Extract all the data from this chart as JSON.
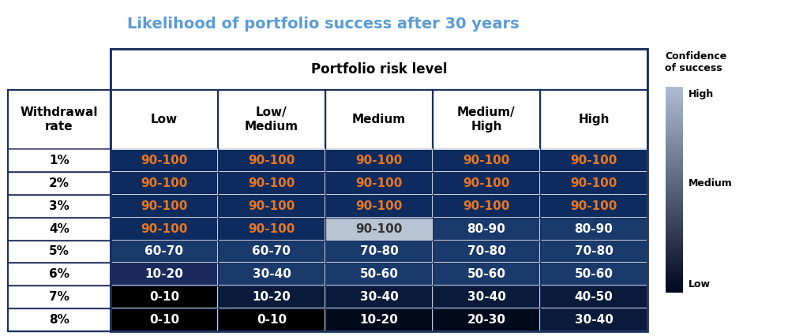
{
  "title": "Likelihood of portfolio success after 30 years",
  "title_color": "#5B9BD5",
  "header_row": [
    "Low",
    "Low/\nMedium",
    "Medium",
    "Medium/\nHigh",
    "High"
  ],
  "row_header": "Portfolio risk level",
  "col_header": "Withdrawal\nrate",
  "withdrawal_rates": [
    "1%",
    "2%",
    "3%",
    "4%",
    "5%",
    "6%",
    "7%",
    "8%"
  ],
  "table_data": [
    [
      "90-100",
      "90-100",
      "90-100",
      "90-100",
      "90-100"
    ],
    [
      "90-100",
      "90-100",
      "90-100",
      "90-100",
      "90-100"
    ],
    [
      "90-100",
      "90-100",
      "90-100",
      "90-100",
      "90-100"
    ],
    [
      "90-100",
      "90-100",
      "90-100",
      "80-90",
      "80-90"
    ],
    [
      "60-70",
      "60-70",
      "70-80",
      "70-80",
      "70-80"
    ],
    [
      "10-20",
      "30-40",
      "50-60",
      "50-60",
      "50-60"
    ],
    [
      "0-10",
      "10-20",
      "30-40",
      "30-40",
      "40-50"
    ],
    [
      "0-10",
      "0-10",
      "10-20",
      "20-30",
      "30-40"
    ]
  ],
  "cell_colors": [
    [
      "#0d2b5e",
      "#0d2b5e",
      "#0d2b5e",
      "#0d2b5e",
      "#0d2b5e"
    ],
    [
      "#0d2b5e",
      "#0d2b5e",
      "#0d2b5e",
      "#0d2b5e",
      "#0d2b5e"
    ],
    [
      "#0d2b5e",
      "#0d2b5e",
      "#0d2b5e",
      "#0d2b5e",
      "#0d2b5e"
    ],
    [
      "#0d2b5e",
      "#0d2b5e",
      "#b8c4d4",
      "#1a3a6c",
      "#1a3a6c"
    ],
    [
      "#1a3a6c",
      "#1a3a6c",
      "#1a3a6c",
      "#1a3a6c",
      "#1a3a6c"
    ],
    [
      "#1a2a5c",
      "#1a3a6c",
      "#1a3a6c",
      "#1a3a6c",
      "#1a3a6c"
    ],
    [
      "#000000",
      "#0a1a3a",
      "#0a1a3a",
      "#0a1a3a",
      "#0a1a3a"
    ],
    [
      "#000000",
      "#000000",
      "#000a1a",
      "#000a1a",
      "#0a1a3a"
    ]
  ],
  "text_colors": [
    [
      "#E87722",
      "#E87722",
      "#E87722",
      "#E87722",
      "#E87722"
    ],
    [
      "#E87722",
      "#E87722",
      "#E87722",
      "#E87722",
      "#E87722"
    ],
    [
      "#E87722",
      "#E87722",
      "#E87722",
      "#E87722",
      "#E87722"
    ],
    [
      "#E87722",
      "#E87722",
      "#333333",
      "#ffffff",
      "#ffffff"
    ],
    [
      "#ffffff",
      "#ffffff",
      "#ffffff",
      "#ffffff",
      "#ffffff"
    ],
    [
      "#ffffff",
      "#ffffff",
      "#ffffff",
      "#ffffff",
      "#ffffff"
    ],
    [
      "#ffffff",
      "#ffffff",
      "#ffffff",
      "#ffffff",
      "#ffffff"
    ],
    [
      "#ffffff",
      "#ffffff",
      "#ffffff",
      "#ffffff",
      "#ffffff"
    ]
  ],
  "legend_title": "Confidence\nof success",
  "legend_labels": [
    "High",
    "Medium",
    "Low"
  ]
}
